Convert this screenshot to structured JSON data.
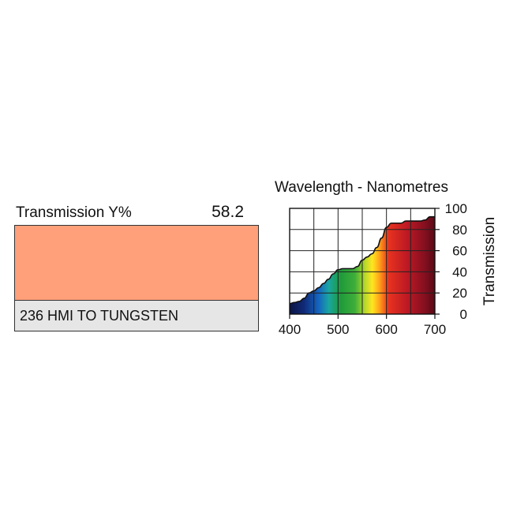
{
  "swatch": {
    "transmission_label": "Transmission Y%",
    "transmission_value": "58.2",
    "color": "#ffa07a",
    "filter_name": "236 HMI TO TUNGSTEN"
  },
  "chart_data": {
    "type": "area",
    "title": "Wavelength - Nanometres",
    "xlabel": "",
    "ylabel": "Transmission",
    "xlim": [
      400,
      700
    ],
    "ylim": [
      0,
      100
    ],
    "x_ticks": [
      "400",
      "500",
      "600",
      "700"
    ],
    "y_ticks": [
      "0",
      "20",
      "40",
      "60",
      "80",
      "100"
    ],
    "grid": true,
    "fill": "visible-spectrum",
    "series": [
      {
        "x": [
          400,
          410,
          420,
          430,
          440,
          450,
          460,
          470,
          480,
          490,
          500,
          510,
          520,
          530,
          540,
          550,
          560,
          570,
          580,
          590,
          600,
          610,
          620,
          630,
          640,
          650,
          660,
          670,
          680,
          690,
          700
        ],
        "y": [
          10,
          11,
          12,
          15,
          20,
          22,
          25,
          29,
          33,
          38,
          42,
          43,
          43,
          43,
          45,
          51,
          54,
          57,
          63,
          72,
          82,
          86,
          86,
          86,
          88,
          88,
          88,
          88,
          89,
          92,
          92
        ]
      }
    ]
  }
}
